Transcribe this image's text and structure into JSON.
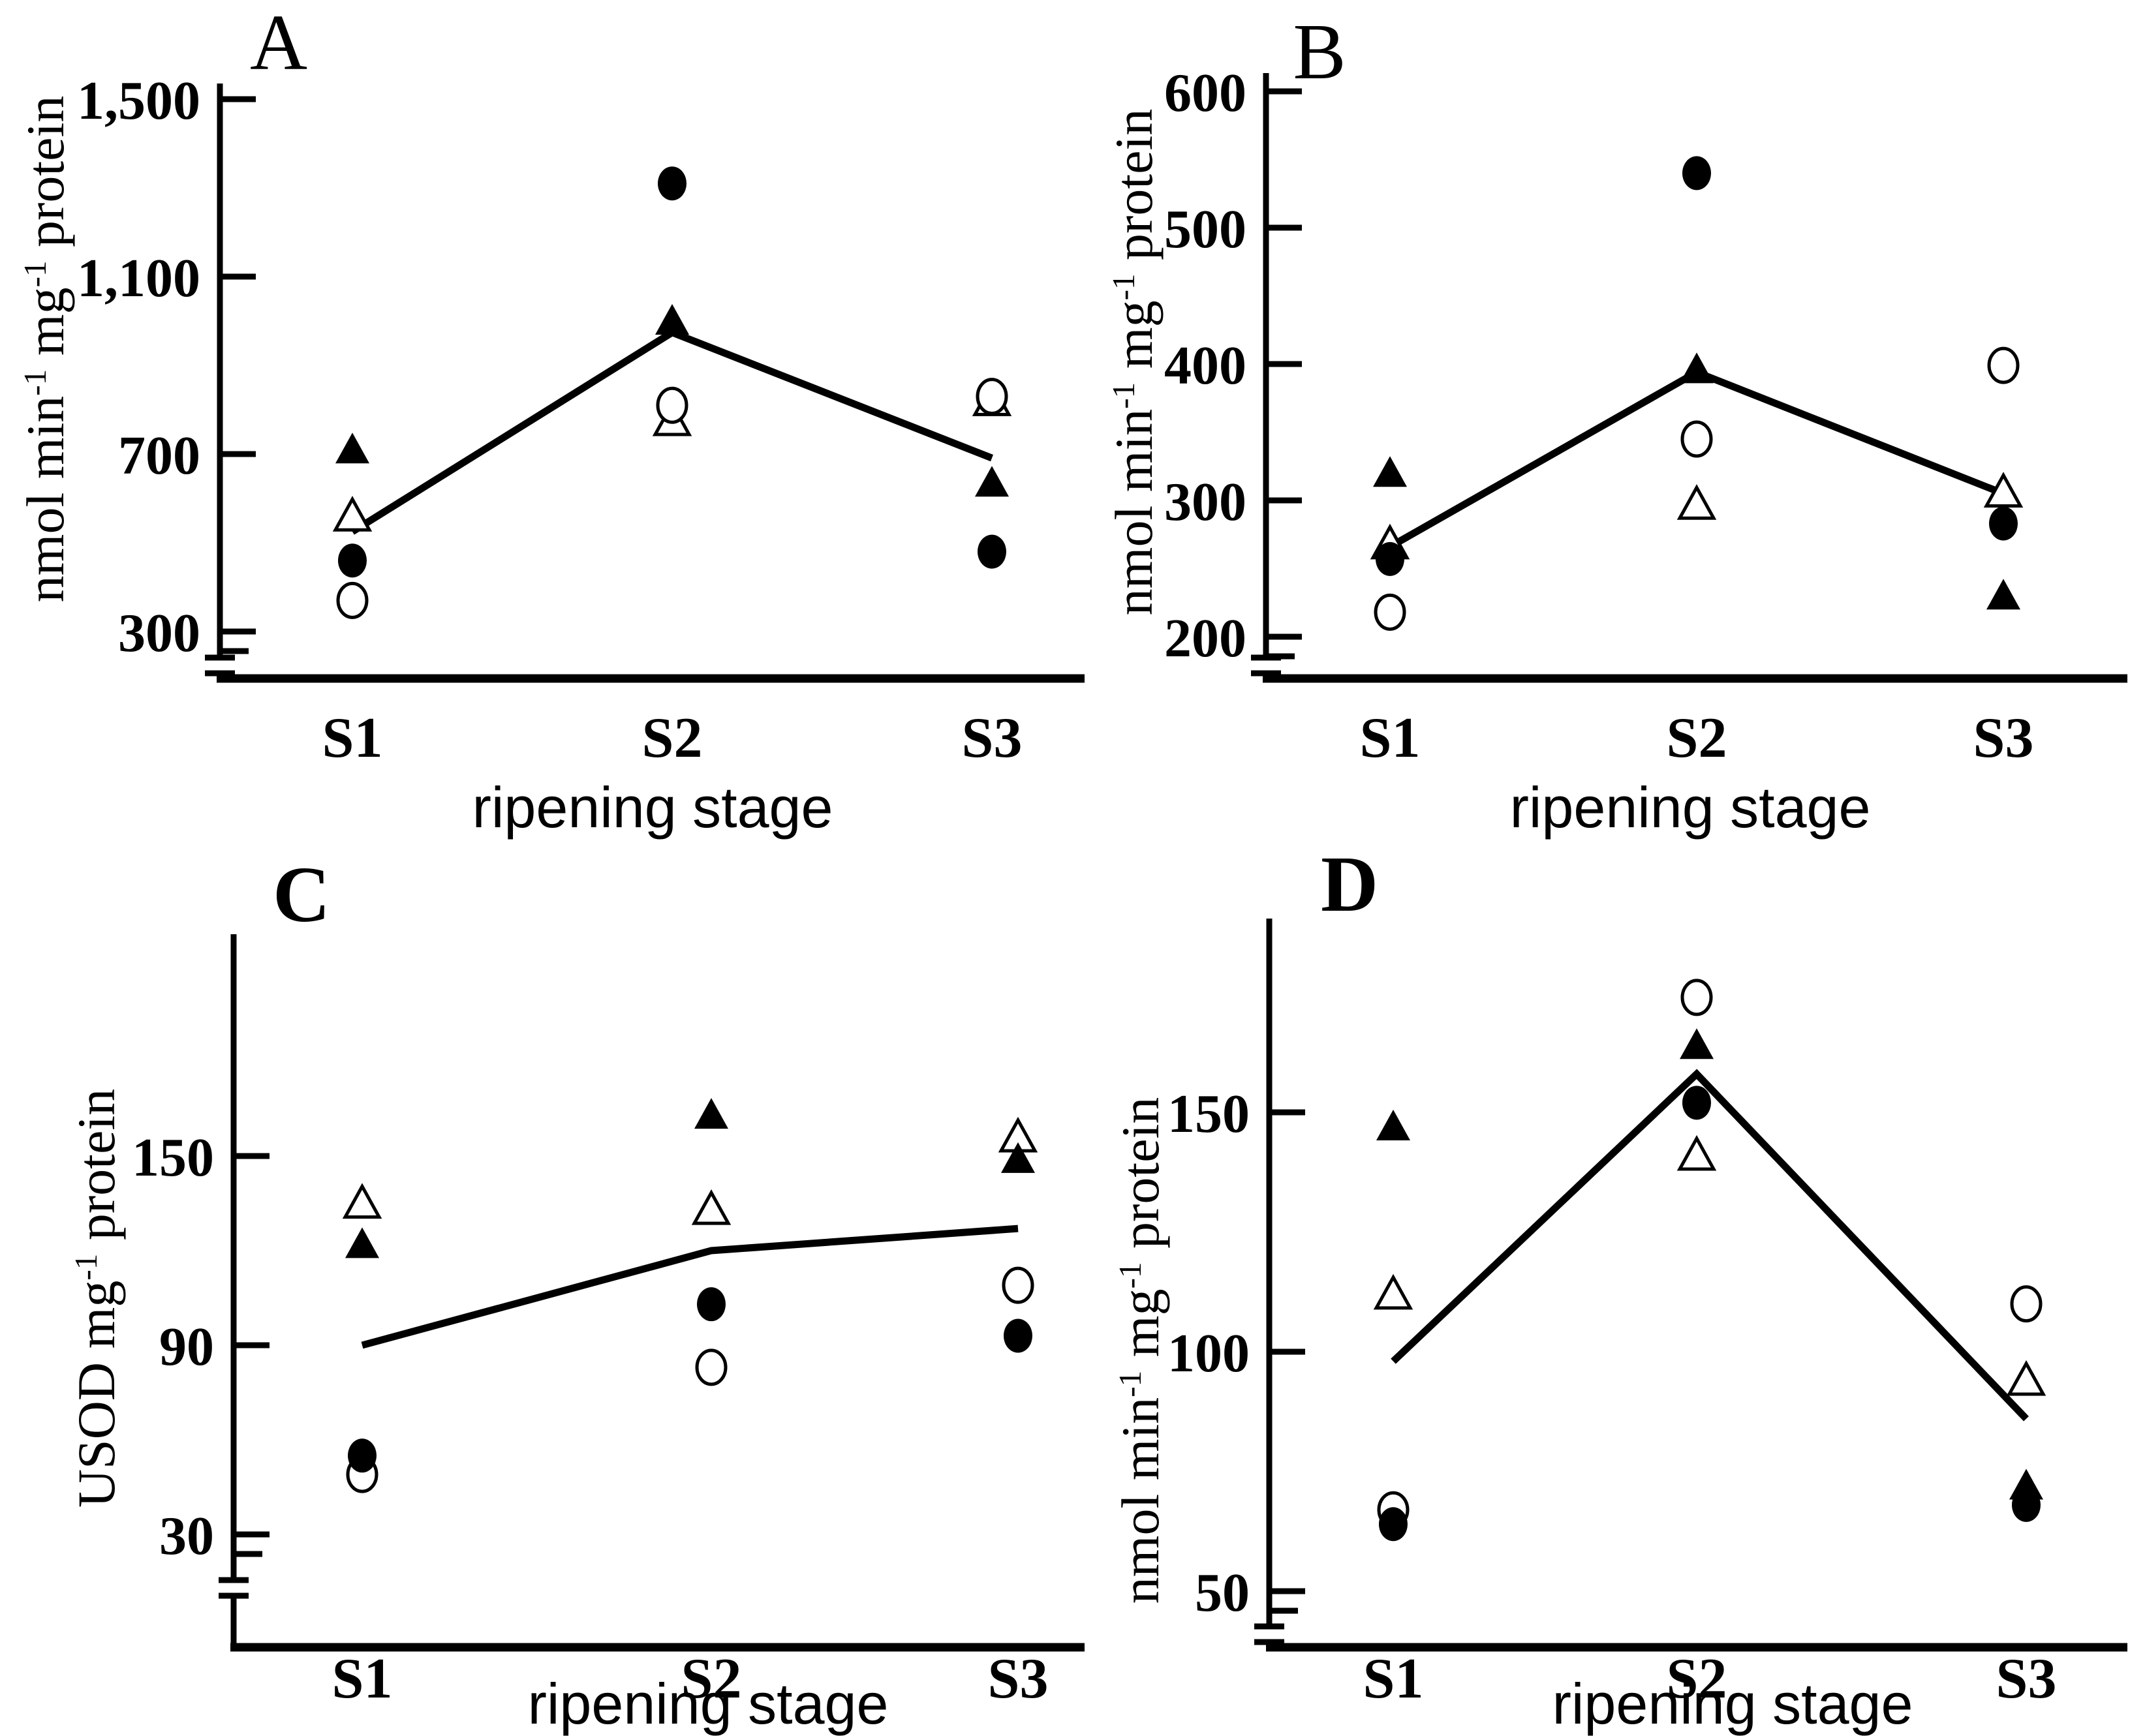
{
  "chart_data": [
    {
      "id": "A",
      "panel_label": "A",
      "type": "scatter",
      "xlabel": "ripening stage",
      "ylabel": "nmol min-1 mg-1 protein",
      "ylabel_parts": [
        {
          "text": "nmol min"
        },
        {
          "text": "-1",
          "sup": true
        },
        {
          "text": " mg"
        },
        {
          "text": "-1",
          "sup": true
        },
        {
          "text": " protein"
        }
      ],
      "categories": [
        "S1",
        "S2",
        "S3"
      ],
      "yticks": [
        {
          "label": "1,500",
          "value": 1500
        },
        {
          "label": "1,100",
          "value": 1100
        },
        {
          "label": "700",
          "value": 700
        },
        {
          "label": "300",
          "value": 300
        }
      ],
      "ylim": [
        300,
        1500
      ],
      "axis_break": true,
      "grid": false,
      "series": [
        {
          "name": "open-triangle",
          "marker": "triangle",
          "fill": "open",
          "values": [
            560,
            775,
            820
          ]
        },
        {
          "name": "filled-triangle",
          "marker": "triangle",
          "fill": "filled",
          "values": [
            710,
            1000,
            635
          ]
        },
        {
          "name": "open-circle",
          "marker": "circle",
          "fill": "open",
          "values": [
            370,
            810,
            830
          ]
        },
        {
          "name": "filled-circle",
          "marker": "circle",
          "fill": "filled",
          "values": [
            460,
            1310,
            480
          ]
        }
      ],
      "mean_line": {
        "name": "mean-line",
        "values": [
          525,
          974,
          691
        ]
      }
    },
    {
      "id": "B",
      "panel_label": "B",
      "type": "scatter",
      "xlabel": "ripening stage",
      "ylabel": "nmol min-1 mg-1 protein",
      "ylabel_parts": [
        {
          "text": "nmol min"
        },
        {
          "text": "-1",
          "sup": true
        },
        {
          "text": " mg"
        },
        {
          "text": "-1",
          "sup": true
        },
        {
          "text": " protein"
        }
      ],
      "categories": [
        "S1",
        "S2",
        "S3"
      ],
      "yticks": [
        {
          "label": "600",
          "value": 600
        },
        {
          "label": "500",
          "value": 500
        },
        {
          "label": "400",
          "value": 400
        },
        {
          "label": "300",
          "value": 300
        },
        {
          "label": "200",
          "value": 200
        }
      ],
      "ylim": [
        200,
        600
      ],
      "axis_break": true,
      "grid": false,
      "series": [
        {
          "name": "open-triangle",
          "marker": "triangle",
          "fill": "open",
          "values": [
            268,
            297,
            306
          ]
        },
        {
          "name": "filled-triangle",
          "marker": "triangle",
          "fill": "filled",
          "values": [
            320,
            396,
            230
          ]
        },
        {
          "name": "open-circle",
          "marker": "circle",
          "fill": "open",
          "values": [
            218,
            345,
            399
          ]
        },
        {
          "name": "filled-circle",
          "marker": "circle",
          "fill": "filled",
          "values": [
            257,
            540,
            283
          ]
        }
      ],
      "mean_line": {
        "name": "mean-line",
        "values": [
          266,
          394,
          305
        ]
      }
    },
    {
      "id": "C",
      "panel_label": "C",
      "type": "scatter",
      "xlabel": "ripening stage",
      "ylabel": "USOD mg-1 protein",
      "ylabel_parts": [
        {
          "text": "USOD mg"
        },
        {
          "text": "-1",
          "sup": true
        },
        {
          "text": " protein"
        }
      ],
      "categories": [
        "S1",
        "S2",
        "S3"
      ],
      "yticks": [
        {
          "label": "150",
          "value": 150
        },
        {
          "label": "90",
          "value": 90
        },
        {
          "label": "30",
          "value": 30
        }
      ],
      "ylim": [
        30,
        150
      ],
      "axis_break": true,
      "grid": false,
      "series": [
        {
          "name": "open-triangle",
          "marker": "triangle",
          "fill": "open",
          "values": [
            135,
            133,
            156
          ]
        },
        {
          "name": "filled-triangle",
          "marker": "triangle",
          "fill": "filled",
          "values": [
            122,
            163,
            149
          ]
        },
        {
          "name": "open-circle",
          "marker": "circle",
          "fill": "open",
          "values": [
            49,
            83,
            109
          ]
        },
        {
          "name": "filled-circle",
          "marker": "circle",
          "fill": "filled",
          "values": [
            55,
            103,
            93
          ]
        }
      ],
      "mean_line": {
        "name": "mean-line",
        "values": [
          90,
          120,
          127
        ]
      }
    },
    {
      "id": "D",
      "panel_label": "D",
      "type": "scatter",
      "xlabel": "ripening stage",
      "ylabel": "nmol min-1 mg-1 protein",
      "ylabel_parts": [
        {
          "text": "nmol min"
        },
        {
          "text": "-1",
          "sup": true
        },
        {
          "text": " mg"
        },
        {
          "text": "-1",
          "sup": true
        },
        {
          "text": " protein"
        }
      ],
      "categories": [
        "S1",
        "S2",
        "S3"
      ],
      "yticks": [
        {
          "label": "150",
          "value": 150
        },
        {
          "label": "100",
          "value": 100
        },
        {
          "label": "50",
          "value": 50
        }
      ],
      "ylim": [
        50,
        150
      ],
      "axis_break": true,
      "grid": false,
      "series": [
        {
          "name": "open-triangle",
          "marker": "triangle",
          "fill": "open",
          "values": [
            112,
            141,
            94
          ]
        },
        {
          "name": "filled-triangle",
          "marker": "triangle",
          "fill": "filled",
          "values": [
            147,
            164,
            72
          ]
        },
        {
          "name": "open-circle",
          "marker": "circle",
          "fill": "open",
          "values": [
            67,
            174,
            110
          ]
        },
        {
          "name": "filled-circle",
          "marker": "circle",
          "fill": "filled",
          "values": [
            64,
            152,
            68
          ]
        }
      ],
      "mean_line": {
        "name": "mean-line",
        "values": [
          98,
          158,
          86
        ]
      }
    }
  ],
  "marker_colors": {
    "filled": "#000000",
    "open_fill": "#ffffff",
    "stroke": "#000000"
  }
}
